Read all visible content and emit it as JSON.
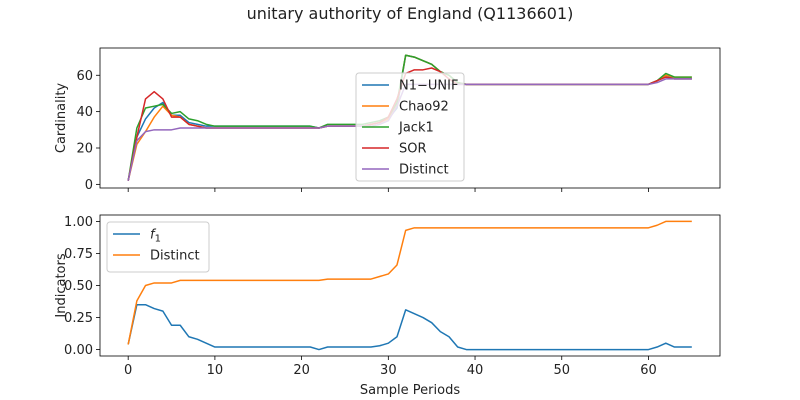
{
  "figure": {
    "title": "unitary authority of England (Q1136601)"
  },
  "chart_data": [
    {
      "type": "line",
      "ylabel": "Cardinality",
      "xlabel": "",
      "xlim": [
        -3.25,
        68.25
      ],
      "ylim": [
        -2,
        75
      ],
      "xticks": [
        0,
        10,
        20,
        30,
        40,
        50,
        60
      ],
      "yticks": [
        0,
        20,
        40,
        60
      ],
      "ytick_labels": [
        "0",
        "20",
        "40",
        "60"
      ],
      "show_xtick_labels": false,
      "grid": false,
      "legend_position": "center-right",
      "x": [
        0,
        1,
        2,
        3,
        4,
        5,
        6,
        7,
        8,
        9,
        10,
        11,
        12,
        13,
        14,
        15,
        16,
        17,
        18,
        19,
        20,
        21,
        22,
        23,
        24,
        25,
        26,
        27,
        28,
        29,
        30,
        31,
        32,
        33,
        34,
        35,
        36,
        37,
        38,
        39,
        40,
        41,
        42,
        43,
        44,
        45,
        46,
        47,
        48,
        49,
        50,
        51,
        52,
        53,
        54,
        55,
        56,
        57,
        58,
        59,
        60,
        61,
        62,
        63,
        64,
        65
      ],
      "series": [
        {
          "name": "N1−UNIF",
          "color": "#1f77b4",
          "values": [
            2,
            26,
            36,
            42,
            45,
            38,
            38,
            34,
            33,
            32,
            32,
            32,
            32,
            32,
            32,
            32,
            32,
            32,
            32,
            32,
            32,
            32,
            31,
            32,
            32,
            32,
            32,
            32,
            33,
            34,
            36,
            42,
            71,
            70,
            68,
            66,
            62,
            60,
            56,
            55,
            55,
            55,
            55,
            55,
            55,
            55,
            55,
            55,
            55,
            55,
            55,
            55,
            55,
            55,
            55,
            55,
            55,
            55,
            55,
            55,
            55,
            57,
            60,
            58,
            58,
            58
          ]
        },
        {
          "name": "Chao92",
          "color": "#ff7f0e",
          "values": [
            2,
            22,
            29,
            37,
            43,
            38,
            37,
            33,
            32,
            31,
            31,
            31,
            31,
            31,
            31,
            31,
            31,
            31,
            31,
            31,
            31,
            31,
            31,
            32,
            32,
            32,
            32,
            32,
            33,
            34,
            36,
            44,
            71,
            70,
            68,
            66,
            62,
            60,
            56,
            55,
            55,
            55,
            55,
            55,
            55,
            55,
            55,
            55,
            55,
            55,
            55,
            55,
            55,
            55,
            55,
            55,
            55,
            55,
            55,
            55,
            55,
            57,
            60,
            59,
            59,
            59
          ]
        },
        {
          "name": "Jack1",
          "color": "#2ca02c",
          "values": [
            2,
            31,
            42,
            43,
            44,
            39,
            40,
            36,
            35,
            33,
            32,
            32,
            32,
            32,
            32,
            32,
            32,
            32,
            32,
            32,
            32,
            32,
            31,
            33,
            33,
            33,
            33,
            33,
            34,
            35,
            37,
            45,
            71,
            70,
            68,
            66,
            62,
            60,
            56,
            55,
            55,
            55,
            55,
            55,
            55,
            55,
            55,
            55,
            55,
            55,
            55,
            55,
            55,
            55,
            55,
            55,
            55,
            55,
            55,
            55,
            55,
            57,
            61,
            59,
            59,
            59
          ]
        },
        {
          "name": "SOR",
          "color": "#d62728",
          "values": [
            2,
            26,
            47,
            51,
            47,
            37,
            37,
            33,
            32,
            31,
            31,
            31,
            31,
            31,
            31,
            31,
            31,
            31,
            31,
            31,
            31,
            31,
            31,
            32,
            32,
            32,
            32,
            32,
            33,
            34,
            37,
            47,
            61,
            63,
            63,
            64,
            62,
            58,
            55,
            55,
            55,
            55,
            55,
            55,
            55,
            55,
            55,
            55,
            55,
            55,
            55,
            55,
            55,
            55,
            55,
            55,
            55,
            55,
            55,
            55,
            55,
            57,
            59,
            58,
            58,
            58
          ]
        },
        {
          "name": "Distinct",
          "color": "#9467bd",
          "values": [
            2,
            24,
            29,
            30,
            30,
            30,
            31,
            31,
            31,
            31,
            31,
            31,
            31,
            31,
            31,
            31,
            31,
            31,
            31,
            31,
            31,
            31,
            31,
            32,
            32,
            32,
            32,
            32,
            32,
            33,
            35,
            43,
            55,
            55,
            55,
            55,
            55,
            55,
            55,
            55,
            55,
            55,
            55,
            55,
            55,
            55,
            55,
            55,
            55,
            55,
            55,
            55,
            55,
            55,
            55,
            55,
            55,
            55,
            55,
            55,
            55,
            56,
            58,
            58,
            58,
            58
          ]
        }
      ]
    },
    {
      "type": "line",
      "ylabel": "Indicators",
      "xlabel": "Sample Periods",
      "xlim": [
        -3.25,
        68.25
      ],
      "ylim": [
        -0.05,
        1.05
      ],
      "xticks": [
        0,
        10,
        20,
        30,
        40,
        50,
        60
      ],
      "xtick_labels": [
        "0",
        "10",
        "20",
        "30",
        "40",
        "50",
        "60"
      ],
      "yticks": [
        0.0,
        0.25,
        0.5,
        0.75,
        1.0
      ],
      "ytick_labels": [
        "0.00",
        "0.25",
        "0.50",
        "0.75",
        "1.00"
      ],
      "show_xtick_labels": true,
      "grid": false,
      "legend_position": "upper-left",
      "x": [
        0,
        1,
        2,
        3,
        4,
        5,
        6,
        7,
        8,
        9,
        10,
        11,
        12,
        13,
        14,
        15,
        16,
        17,
        18,
        19,
        20,
        21,
        22,
        23,
        24,
        25,
        26,
        27,
        28,
        29,
        30,
        31,
        32,
        33,
        34,
        35,
        36,
        37,
        38,
        39,
        40,
        41,
        42,
        43,
        44,
        45,
        46,
        47,
        48,
        49,
        50,
        51,
        52,
        53,
        54,
        55,
        56,
        57,
        58,
        59,
        60,
        61,
        62,
        63,
        64,
        65
      ],
      "series": [
        {
          "name": "f",
          "name_subscript": "1",
          "color": "#1f77b4",
          "values": [
            0.04,
            0.35,
            0.35,
            0.32,
            0.3,
            0.19,
            0.19,
            0.1,
            0.08,
            0.05,
            0.02,
            0.02,
            0.02,
            0.02,
            0.02,
            0.02,
            0.02,
            0.02,
            0.02,
            0.02,
            0.02,
            0.02,
            0.0,
            0.02,
            0.02,
            0.02,
            0.02,
            0.02,
            0.02,
            0.03,
            0.05,
            0.1,
            0.31,
            0.28,
            0.25,
            0.21,
            0.14,
            0.1,
            0.02,
            0.0,
            0.0,
            0.0,
            0.0,
            0.0,
            0.0,
            0.0,
            0.0,
            0.0,
            0.0,
            0.0,
            0.0,
            0.0,
            0.0,
            0.0,
            0.0,
            0.0,
            0.0,
            0.0,
            0.0,
            0.0,
            0.0,
            0.02,
            0.05,
            0.02,
            0.02,
            0.02
          ]
        },
        {
          "name": "Distinct",
          "color": "#ff7f0e",
          "values": [
            0.04,
            0.38,
            0.5,
            0.52,
            0.52,
            0.52,
            0.54,
            0.54,
            0.54,
            0.54,
            0.54,
            0.54,
            0.54,
            0.54,
            0.54,
            0.54,
            0.54,
            0.54,
            0.54,
            0.54,
            0.54,
            0.54,
            0.54,
            0.55,
            0.55,
            0.55,
            0.55,
            0.55,
            0.55,
            0.57,
            0.59,
            0.66,
            0.93,
            0.95,
            0.95,
            0.95,
            0.95,
            0.95,
            0.95,
            0.95,
            0.95,
            0.95,
            0.95,
            0.95,
            0.95,
            0.95,
            0.95,
            0.95,
            0.95,
            0.95,
            0.95,
            0.95,
            0.95,
            0.95,
            0.95,
            0.95,
            0.95,
            0.95,
            0.95,
            0.95,
            0.95,
            0.97,
            1.0,
            1.0,
            1.0,
            1.0
          ]
        }
      ]
    }
  ]
}
